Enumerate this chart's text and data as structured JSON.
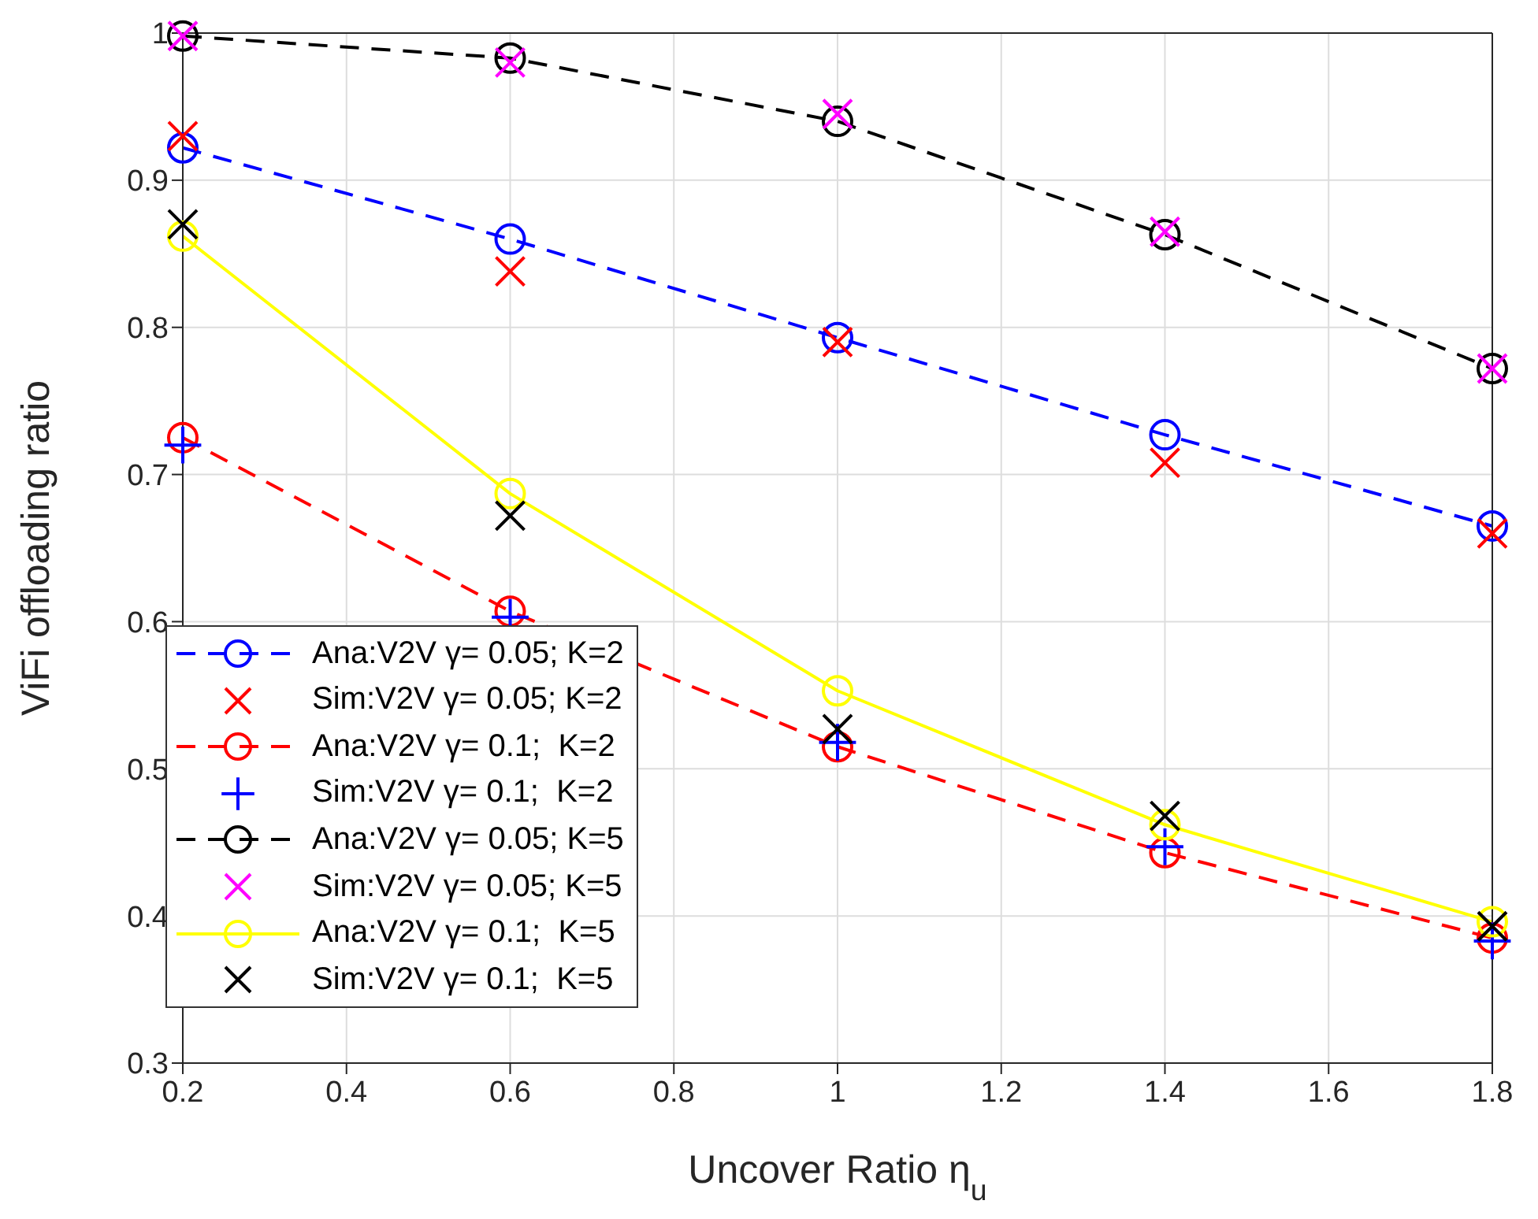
{
  "chart_data": {
    "type": "line",
    "xlabel": "Uncover Ratio η$_{u}$",
    "ylabel": "ViFi offloading ratio",
    "x": [
      0.2,
      0.6,
      1.0,
      1.4,
      1.8
    ],
    "xlim": [
      0.2,
      1.8
    ],
    "xticks": [
      0.2,
      0.4,
      0.6,
      0.8,
      1,
      1.2,
      1.4,
      1.6,
      1.8
    ],
    "ylim": [
      0.3,
      1.0
    ],
    "yticks": [
      0.3,
      0.4,
      0.5,
      0.6,
      0.7,
      0.8,
      0.9,
      1
    ],
    "grid": true,
    "legend": "bottom left",
    "series": [
      {
        "name": "Ana:V2V γ= 0.05; K=2",
        "type": "line",
        "color": "#0000ff",
        "line_style": "dashed",
        "marker": "circle",
        "values": [
          0.922,
          0.86,
          0.793,
          0.727,
          0.665
        ]
      },
      {
        "name": "Sim:V2V γ= 0.05; K=2",
        "type": "scatter",
        "color": "#ff0000",
        "marker": "cross",
        "values": [
          0.93,
          0.838,
          0.79,
          0.708,
          0.66
        ]
      },
      {
        "name": "Ana:V2V γ= 0.1;  K=2",
        "type": "line",
        "color": "#ff0000",
        "line_style": "dashed",
        "marker": "circle",
        "values": [
          0.725,
          0.607,
          0.515,
          0.443,
          0.385
        ]
      },
      {
        "name": "Sim:V2V γ= 0.1;  K=2",
        "type": "scatter",
        "color": "#0000ff",
        "marker": "plus",
        "values": [
          0.72,
          0.603,
          0.518,
          0.447,
          0.383
        ]
      },
      {
        "name": "Ana:V2V γ= 0.05; K=5",
        "type": "line",
        "color": "#000000",
        "line_style": "dashed",
        "marker": "circle",
        "values": [
          0.998,
          0.983,
          0.94,
          0.863,
          0.772
        ]
      },
      {
        "name": "Sim:V2V γ= 0.05; K=5",
        "type": "scatter",
        "color": "#ff00ff",
        "marker": "cross",
        "values": [
          0.998,
          0.98,
          0.945,
          0.865,
          0.772
        ]
      },
      {
        "name": "Ana:V2V γ= 0.1;  K=5",
        "type": "line",
        "color": "#ffff00",
        "line_style": "solid",
        "marker": "circle",
        "values": [
          0.862,
          0.687,
          0.553,
          0.462,
          0.396
        ]
      },
      {
        "name": "Sim:V2V γ= 0.1;  K=5",
        "type": "scatter",
        "color": "#000000",
        "marker": "cross",
        "values": [
          0.87,
          0.672,
          0.527,
          0.468,
          0.393
        ]
      }
    ]
  }
}
